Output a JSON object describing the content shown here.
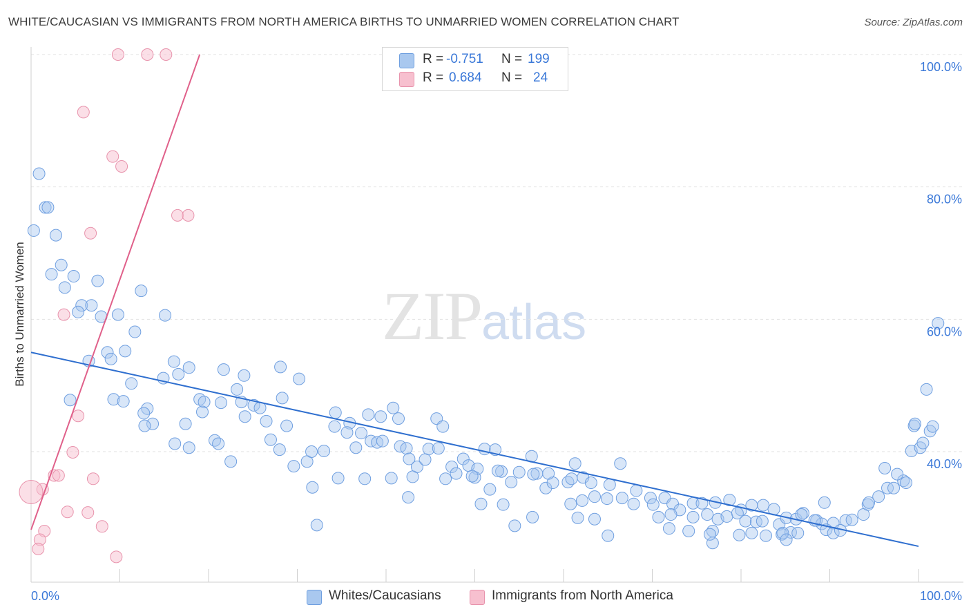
{
  "header": {
    "title": "WHITE/CAUCASIAN VS IMMIGRANTS FROM NORTH AMERICA BIRTHS TO UNMARRIED WOMEN CORRELATION CHART",
    "source": "Source: ZipAtlas.com"
  },
  "watermark": {
    "zip": "ZIP",
    "atlas": "atlas"
  },
  "legend": {
    "rows": [
      {
        "r_label": "R =",
        "r_value": "-0.751",
        "n_label": "N =",
        "n_value": "199",
        "color": "#a9c8ef",
        "border": "#6f9fe0"
      },
      {
        "r_label": "R =",
        "r_value": "0.684",
        "n_label": "N =",
        "n_value": "24",
        "color": "#f7c0cf",
        "border": "#e893ac"
      }
    ]
  },
  "bottom_legend": {
    "items": [
      {
        "label": "Whites/Caucasians",
        "color": "#a9c8ef",
        "border": "#6f9fe0"
      },
      {
        "label": "Immigrants from North America",
        "color": "#f7c0cf",
        "border": "#e893ac"
      }
    ]
  },
  "chart_data": {
    "type": "scatter",
    "title": "WHITE/CAUCASIAN VS IMMIGRANTS FROM NORTH AMERICA BIRTHS TO UNMARRIED WOMEN CORRELATION CHART",
    "xlabel": "",
    "ylabel": "Births to Unmarried Women",
    "x_tick_labels": [
      "0.0%",
      "100.0%"
    ],
    "y_tick_labels": [
      "40.0%",
      "60.0%",
      "80.0%",
      "100.0%"
    ],
    "xlim": [
      0,
      100
    ],
    "ylim": [
      20,
      100
    ],
    "grid": true,
    "colors": {
      "blue": "#6f9fe0",
      "blue_fill": "#a9c8ef",
      "pink": "#e893ac",
      "pink_fill": "#f7c0cf",
      "blue_line": "#2f6fcf",
      "pink_line": "#e0608a",
      "axis_text": "#3a78d8"
    },
    "series": [
      {
        "name": "Whites/Caucasians",
        "points": [
          [
            0.9,
            82
          ],
          [
            1.6,
            76.9
          ],
          [
            1.9,
            76.9
          ],
          [
            0.3,
            73.4
          ],
          [
            2.8,
            72.7
          ],
          [
            3.4,
            68.2
          ],
          [
            2.3,
            66.8
          ],
          [
            4.8,
            66.5
          ],
          [
            7.5,
            65.8
          ],
          [
            3.8,
            64.8
          ],
          [
            12.4,
            64.3
          ],
          [
            5.7,
            62.1
          ],
          [
            6.8,
            62.1
          ],
          [
            5.3,
            61.1
          ],
          [
            7.9,
            60.4
          ],
          [
            9.8,
            60.7
          ],
          [
            15.1,
            60.6
          ],
          [
            11.7,
            58.1
          ],
          [
            8.6,
            55.0
          ],
          [
            10.6,
            55.2
          ],
          [
            9.0,
            54.0
          ],
          [
            6.5,
            53.7
          ],
          [
            16.1,
            53.6
          ],
          [
            17.8,
            52.7
          ],
          [
            16.6,
            51.7
          ],
          [
            21.7,
            52.4
          ],
          [
            28.1,
            52.8
          ],
          [
            24.0,
            51.5
          ],
          [
            14.9,
            51.1
          ],
          [
            11.3,
            50.3
          ],
          [
            30.2,
            51.0
          ],
          [
            23.2,
            49.4
          ],
          [
            9.3,
            47.9
          ],
          [
            10.4,
            47.6
          ],
          [
            4.4,
            47.8
          ],
          [
            19.0,
            47.9
          ],
          [
            19.5,
            47.5
          ],
          [
            21.4,
            47.4
          ],
          [
            23.7,
            47.5
          ],
          [
            25.1,
            47.0
          ],
          [
            28.3,
            48.1
          ],
          [
            25.8,
            46.6
          ],
          [
            13.1,
            46.5
          ],
          [
            12.7,
            45.8
          ],
          [
            19.3,
            46.0
          ],
          [
            24.1,
            45.3
          ],
          [
            34.3,
            45.9
          ],
          [
            35.9,
            44.3
          ],
          [
            38.0,
            45.6
          ],
          [
            39.4,
            45.3
          ],
          [
            40.8,
            46.6
          ],
          [
            41.4,
            45.0
          ],
          [
            13.7,
            44.2
          ],
          [
            12.8,
            43.9
          ],
          [
            17.4,
            44.2
          ],
          [
            26.5,
            44.6
          ],
          [
            28.8,
            43.9
          ],
          [
            34.2,
            43.8
          ],
          [
            35.6,
            42.9
          ],
          [
            37.2,
            42.8
          ],
          [
            45.7,
            45.0
          ],
          [
            46.4,
            43.8
          ],
          [
            20.7,
            41.7
          ],
          [
            21.1,
            41.2
          ],
          [
            16.2,
            41.2
          ],
          [
            17.8,
            40.6
          ],
          [
            27.0,
            41.8
          ],
          [
            28.0,
            40.3
          ],
          [
            33.0,
            40.1
          ],
          [
            36.6,
            40.6
          ],
          [
            38.3,
            41.6
          ],
          [
            39.0,
            41.4
          ],
          [
            41.6,
            40.8
          ],
          [
            42.3,
            40.5
          ],
          [
            44.8,
            40.4
          ],
          [
            45.9,
            40.5
          ],
          [
            39.6,
            41.6
          ],
          [
            22.5,
            38.5
          ],
          [
            29.6,
            37.8
          ],
          [
            31.1,
            38.5
          ],
          [
            31.6,
            40.0
          ],
          [
            42.6,
            38.9
          ],
          [
            43.5,
            37.7
          ],
          [
            44.4,
            38.8
          ],
          [
            47.4,
            37.7
          ],
          [
            48.7,
            38.9
          ],
          [
            51.1,
            40.4
          ],
          [
            52.3,
            40.3
          ],
          [
            56.4,
            39.3
          ],
          [
            49.3,
            37.9
          ],
          [
            50.3,
            37.4
          ],
          [
            53.0,
            37.0
          ],
          [
            55.0,
            36.9
          ],
          [
            57.0,
            36.7
          ],
          [
            60.5,
            35.4
          ],
          [
            60.9,
            35.9
          ],
          [
            62.2,
            36.1
          ],
          [
            63.1,
            35.3
          ],
          [
            65.2,
            35.0
          ],
          [
            68.2,
            34.1
          ],
          [
            69.8,
            33.0
          ],
          [
            71.4,
            33.0
          ],
          [
            56.6,
            36.6
          ],
          [
            58.0,
            34.5
          ],
          [
            58.8,
            35.3
          ],
          [
            66.4,
            38.2
          ],
          [
            61.3,
            38.2
          ],
          [
            47.9,
            36.7
          ],
          [
            46.7,
            35.9
          ],
          [
            43.0,
            36.2
          ],
          [
            34.6,
            36.0
          ],
          [
            37.6,
            35.9
          ],
          [
            31.7,
            34.6
          ],
          [
            54.1,
            35.4
          ],
          [
            58.3,
            36.7
          ],
          [
            52.6,
            37.1
          ],
          [
            50.0,
            36.1
          ],
          [
            49.7,
            36.3
          ],
          [
            63.5,
            33.2
          ],
          [
            64.9,
            32.9
          ],
          [
            66.6,
            33.0
          ],
          [
            67.9,
            32.1
          ],
          [
            70.1,
            32.0
          ],
          [
            72.3,
            32.1
          ],
          [
            73.1,
            31.2
          ],
          [
            74.6,
            32.2
          ],
          [
            75.6,
            32.2
          ],
          [
            77.1,
            32.3
          ],
          [
            78.7,
            32.7
          ],
          [
            80.0,
            31.2
          ],
          [
            81.2,
            31.9
          ],
          [
            82.5,
            31.9
          ],
          [
            83.7,
            31.3
          ],
          [
            70.7,
            30.1
          ],
          [
            72.1,
            30.5
          ],
          [
            74.6,
            30.1
          ],
          [
            76.2,
            30.5
          ],
          [
            77.4,
            29.8
          ],
          [
            78.4,
            30.2
          ],
          [
            79.6,
            30.7
          ],
          [
            80.5,
            29.5
          ],
          [
            81.7,
            29.4
          ],
          [
            82.4,
            29.5
          ],
          [
            84.3,
            29.0
          ],
          [
            85.1,
            30.0
          ],
          [
            86.2,
            29.8
          ],
          [
            87.0,
            30.7
          ],
          [
            88.5,
            29.6
          ],
          [
            89.1,
            29.1
          ],
          [
            90.4,
            29.2
          ],
          [
            91.8,
            29.6
          ],
          [
            92.5,
            29.7
          ],
          [
            93.8,
            30.5
          ],
          [
            94.3,
            32.0
          ],
          [
            94.4,
            32.3
          ],
          [
            95.5,
            33.2
          ],
          [
            96.5,
            34.5
          ],
          [
            97.2,
            34.5
          ],
          [
            98.3,
            35.6
          ],
          [
            96.2,
            37.5
          ],
          [
            97.6,
            36.6
          ],
          [
            98.6,
            35.3
          ],
          [
            99.2,
            40.1
          ],
          [
            100.2,
            40.6
          ],
          [
            100.5,
            41.3
          ],
          [
            99.5,
            43.9
          ],
          [
            101.3,
            43.1
          ],
          [
            101.6,
            43.8
          ],
          [
            99.6,
            44.2
          ],
          [
            71.9,
            28.4
          ],
          [
            74.1,
            28.0
          ],
          [
            76.8,
            28.0
          ],
          [
            79.8,
            27.4
          ],
          [
            81.2,
            27.7
          ],
          [
            82.8,
            27.3
          ],
          [
            84.6,
            27.5
          ],
          [
            85.6,
            27.8
          ],
          [
            86.4,
            27.7
          ],
          [
            88.3,
            29.6
          ],
          [
            89.6,
            28.2
          ],
          [
            90.4,
            27.7
          ],
          [
            91.2,
            28.1
          ],
          [
            86.8,
            30.5
          ],
          [
            89.4,
            32.3
          ],
          [
            76.8,
            26.2
          ],
          [
            84.7,
            27.7
          ],
          [
            76.5,
            27.5
          ],
          [
            85.1,
            26.7
          ],
          [
            63.5,
            29.8
          ],
          [
            65.0,
            27.3
          ],
          [
            61.6,
            30.0
          ],
          [
            54.5,
            28.8
          ],
          [
            56.5,
            30.1
          ],
          [
            32.2,
            28.9
          ],
          [
            102.2,
            59.4
          ],
          [
            100.9,
            49.4
          ],
          [
            42.5,
            33.1
          ],
          [
            40.6,
            36.0
          ],
          [
            51.7,
            34.3
          ],
          [
            50.7,
            32.1
          ],
          [
            53.2,
            32.0
          ],
          [
            62.1,
            32.6
          ],
          [
            60.8,
            32.1
          ]
        ]
      },
      {
        "name": "Immigrants from North America",
        "points": [
          [
            9.8,
            100
          ],
          [
            13.1,
            100
          ],
          [
            15.2,
            100
          ],
          [
            5.9,
            91.3
          ],
          [
            9.2,
            84.6
          ],
          [
            10.2,
            83.1
          ],
          [
            16.5,
            75.7
          ],
          [
            17.7,
            75.7
          ],
          [
            6.7,
            73.0
          ],
          [
            3.7,
            60.7
          ],
          [
            5.3,
            45.4
          ],
          [
            4.7,
            39.9
          ],
          [
            2.6,
            36.4
          ],
          [
            3.1,
            36.4
          ],
          [
            1.3,
            34.3
          ],
          [
            0.0,
            33.9
          ],
          [
            7.0,
            35.9
          ],
          [
            4.1,
            30.9
          ],
          [
            6.4,
            30.8
          ],
          [
            8.0,
            28.7
          ],
          [
            1.5,
            28.0
          ],
          [
            1.0,
            26.7
          ],
          [
            0.8,
            25.3
          ],
          [
            9.6,
            24.1
          ]
        ]
      }
    ],
    "trend_lines": [
      {
        "series": "Whites/Caucasians",
        "from": [
          0,
          55.0
        ],
        "to": [
          100,
          25.7
        ]
      },
      {
        "series": "Immigrants from North America",
        "from": [
          0,
          28.2
        ],
        "to": [
          19.0,
          100
        ]
      }
    ]
  }
}
